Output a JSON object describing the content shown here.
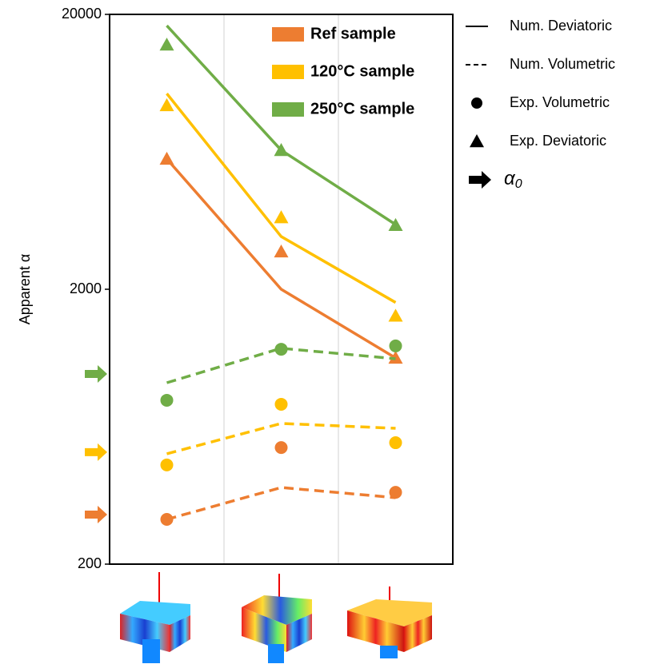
{
  "chart_data": {
    "type": "line",
    "ylabel": "Apparent α",
    "categories": [
      null,
      null,
      null
    ],
    "log_y": true,
    "ylim": [
      200,
      20000
    ],
    "yticks": [
      200,
      2000,
      20000
    ],
    "samples": [
      {
        "name": "Ref sample",
        "color": "#ED7D31",
        "num_deviatoric": [
          5960,
          2000,
          1125
        ],
        "num_volumetric": [
          291,
          380,
          349
        ],
        "exp_deviatoric": [
          5960,
          2740,
          1125
        ],
        "exp_volumetric": [
          291,
          531,
          365
        ],
        "alpha0": 303
      },
      {
        "name": "120°C sample",
        "color": "#FFC000",
        "num_deviatoric": [
          10300,
          3110,
          1790
        ],
        "num_volumetric": [
          504,
          650,
          624
        ],
        "exp_deviatoric": [
          9330,
          3650,
          1600
        ],
        "exp_volumetric": [
          459,
          763,
          553
        ],
        "alpha0": 511
      },
      {
        "name": "250°C sample",
        "color": "#70AD47",
        "num_deviatoric": [
          18200,
          6410,
          3440
        ],
        "num_volumetric": [
          914,
          1220,
          1117
        ],
        "exp_deviatoric": [
          15500,
          6410,
          3420
        ],
        "exp_volumetric": [
          789,
          1210,
          1244
        ],
        "alpha0": 984
      }
    ],
    "style_legend": [
      {
        "label": "Num. Deviatoric",
        "style": "solid"
      },
      {
        "label": "Num. Volumetric",
        "style": "dashed"
      },
      {
        "label": "Exp. Volumetric",
        "style": "circle"
      },
      {
        "label": "Exp. Deviatoric",
        "style": "triangle"
      },
      {
        "label": "α",
        "subscript": "0",
        "style": "arrow"
      }
    ]
  }
}
